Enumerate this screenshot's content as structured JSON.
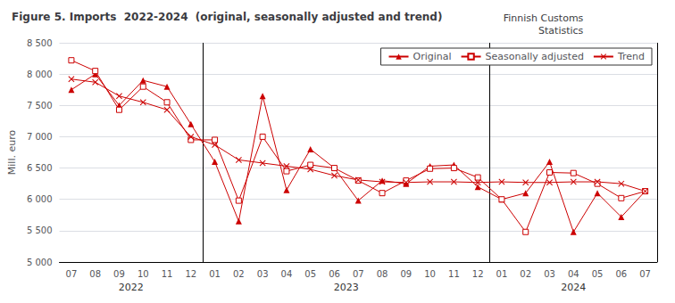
{
  "chart_data": {
    "type": "line",
    "title": "Figure 5. Imports  2022-2024  (original, seasonally adjusted and trend)",
    "subtitle": "Finnish Customs\nStatistics",
    "ylabel": "Mill. euro",
    "categories": [
      "07",
      "08",
      "09",
      "10",
      "11",
      "12",
      "01",
      "02",
      "03",
      "04",
      "05",
      "06",
      "07",
      "08",
      "09",
      "10",
      "11",
      "12",
      "01",
      "02",
      "03",
      "04",
      "05",
      "06",
      "07"
    ],
    "annotations": [
      {
        "text": "2022",
        "start": 0,
        "end": 5
      },
      {
        "text": "2023",
        "start": 6,
        "end": 17
      },
      {
        "text": "2024",
        "start": 18,
        "end": 24
      }
    ],
    "series": [
      {
        "name": "Original",
        "color": "#cc0000",
        "marker": "triangle",
        "values": [
          7750,
          8000,
          7500,
          7900,
          7800,
          7200,
          6600,
          5650,
          7650,
          6150,
          6800,
          6500,
          5980,
          6300,
          6250,
          6530,
          6550,
          6200,
          6000,
          6100,
          6600,
          5480,
          6100,
          5720,
          6130
        ]
      },
      {
        "name": "Seasonally adjusted",
        "color": "#cc0000",
        "marker": "square",
        "values": [
          8220,
          8050,
          7430,
          7800,
          7550,
          6950,
          6950,
          5980,
          7000,
          6450,
          6550,
          6500,
          6300,
          6100,
          6300,
          6490,
          6500,
          6350,
          6000,
          5480,
          6430,
          6420,
          6250,
          6020,
          6130
        ]
      },
      {
        "name": "Trend",
        "color": "#cc0000",
        "marker": "x",
        "values": [
          7920,
          7870,
          7650,
          7550,
          7430,
          7000,
          6870,
          6630,
          6580,
          6530,
          6480,
          6380,
          6310,
          6280,
          6270,
          6280,
          6280,
          6270,
          6280,
          6270,
          6270,
          6280,
          6280,
          6250,
          6130
        ]
      }
    ],
    "ylim": [
      5000,
      8500
    ],
    "yticks": [
      {
        "value": 5000,
        "label": "5 000"
      },
      {
        "value": 5500,
        "label": "5 500"
      },
      {
        "value": 6000,
        "label": "6 000"
      },
      {
        "value": 6500,
        "label": "6 500"
      },
      {
        "value": 7000,
        "label": "7 000"
      },
      {
        "value": 7500,
        "label": "7 500"
      },
      {
        "value": 8000,
        "label": "8 000"
      },
      {
        "value": 8500,
        "label": "8 500"
      }
    ],
    "grid": true,
    "legend": "upper right"
  }
}
